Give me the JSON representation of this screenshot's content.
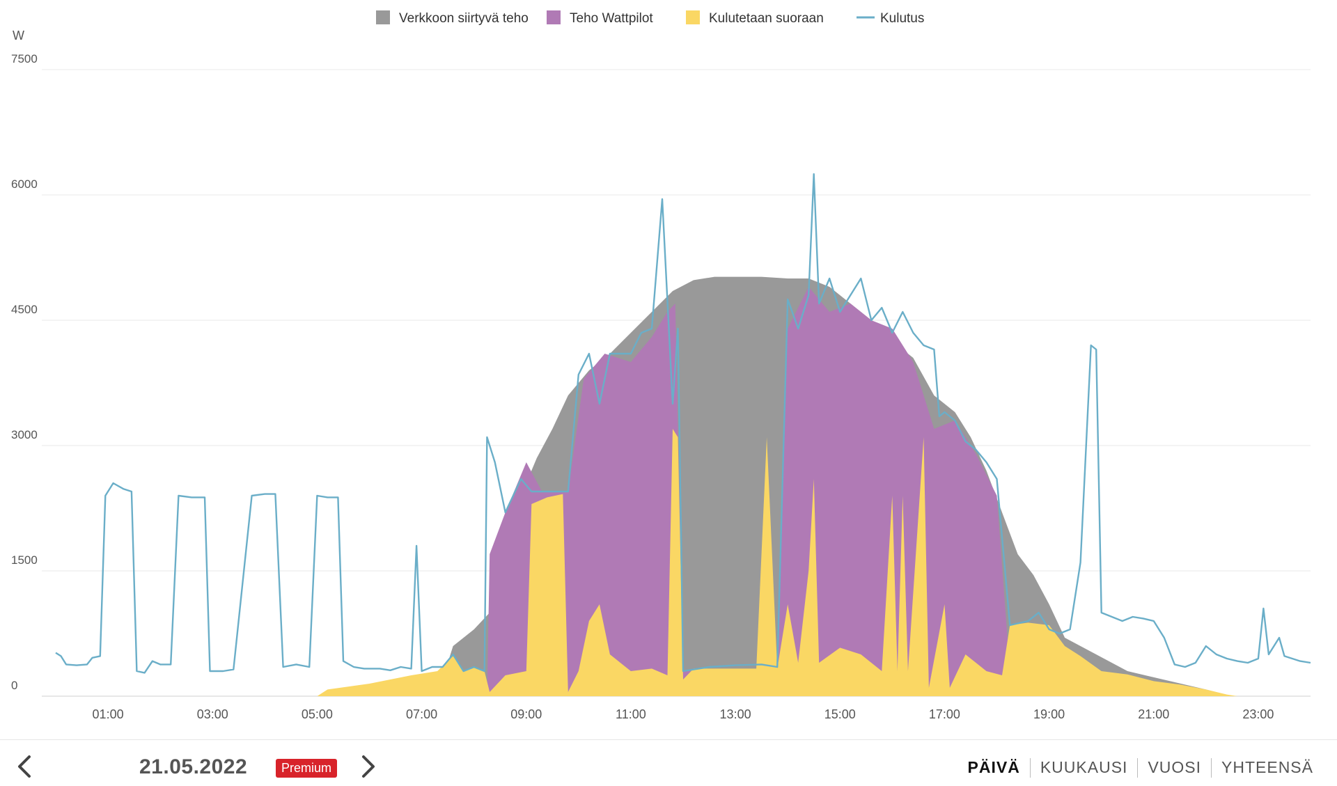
{
  "chart_data": {
    "type": "area",
    "ylabel": "W",
    "ylim": [
      0,
      7500
    ],
    "yticks": [
      "0",
      "1500",
      "3000",
      "4500",
      "6000",
      "7500"
    ],
    "xlim": [
      0,
      24
    ],
    "xticks": [
      "01:00",
      "03:00",
      "05:00",
      "07:00",
      "09:00",
      "11:00",
      "13:00",
      "15:00",
      "17:00",
      "19:00",
      "21:00",
      "23:00"
    ],
    "grid": true,
    "legend_position": "top",
    "series": [
      {
        "name": "Verkkoon siirtyvä teho",
        "kind": "area",
        "color": "#999999",
        "points": [
          [
            5,
            0
          ],
          [
            7.4,
            200
          ],
          [
            7.6,
            600
          ],
          [
            8.0,
            800
          ],
          [
            8.3,
            1000
          ],
          [
            8.6,
            1700
          ],
          [
            8.9,
            2400
          ],
          [
            9.2,
            2850
          ],
          [
            9.5,
            3200
          ],
          [
            9.8,
            3600
          ],
          [
            10.2,
            3900
          ],
          [
            10.6,
            4100
          ],
          [
            11.0,
            4350
          ],
          [
            11.4,
            4600
          ],
          [
            11.8,
            4850
          ],
          [
            12.2,
            4980
          ],
          [
            12.6,
            5020
          ],
          [
            13.0,
            5020
          ],
          [
            13.5,
            5020
          ],
          [
            14.0,
            5000
          ],
          [
            14.4,
            5000
          ],
          [
            14.8,
            4900
          ],
          [
            15.2,
            4700
          ],
          [
            15.6,
            4500
          ],
          [
            16.0,
            4250
          ],
          [
            16.4,
            4050
          ],
          [
            16.8,
            3600
          ],
          [
            17.2,
            3400
          ],
          [
            17.5,
            3100
          ],
          [
            17.8,
            2700
          ],
          [
            18.1,
            2200
          ],
          [
            18.4,
            1700
          ],
          [
            18.7,
            1450
          ],
          [
            19.0,
            1100
          ],
          [
            19.3,
            700
          ],
          [
            20.5,
            300
          ],
          [
            22.0,
            80
          ],
          [
            22.5,
            0
          ]
        ]
      },
      {
        "name": "Teho Wattpilot",
        "kind": "area",
        "color": "#b07ab5",
        "points": [
          [
            8.25,
            0
          ],
          [
            8.3,
            1700
          ],
          [
            8.6,
            2200
          ],
          [
            9.0,
            2800
          ],
          [
            9.3,
            2450
          ],
          [
            9.8,
            2450
          ],
          [
            10.1,
            3800
          ],
          [
            10.5,
            4100
          ],
          [
            11.0,
            4000
          ],
          [
            11.4,
            4300
          ],
          [
            11.7,
            4600
          ],
          [
            11.85,
            4700
          ],
          [
            12.0,
            300
          ],
          [
            13.8,
            300
          ],
          [
            14.0,
            4400
          ],
          [
            14.4,
            4900
          ],
          [
            14.8,
            4600
          ],
          [
            15.2,
            4700
          ],
          [
            15.6,
            4500
          ],
          [
            16.0,
            4400
          ],
          [
            16.4,
            4000
          ],
          [
            16.8,
            3200
          ],
          [
            17.2,
            3300
          ],
          [
            17.6,
            2900
          ],
          [
            18.0,
            2400
          ],
          [
            18.25,
            300
          ],
          [
            18.3,
            0
          ]
        ]
      },
      {
        "name": "Kulutetaan suoraan",
        "kind": "area",
        "color": "#fad764",
        "points": [
          [
            5.0,
            0
          ],
          [
            5.2,
            80
          ],
          [
            6.0,
            150
          ],
          [
            6.8,
            250
          ],
          [
            7.3,
            300
          ],
          [
            7.6,
            480
          ],
          [
            7.8,
            300
          ],
          [
            8.0,
            350
          ],
          [
            8.2,
            300
          ],
          [
            8.3,
            50
          ],
          [
            8.6,
            250
          ],
          [
            9.0,
            300
          ],
          [
            9.1,
            2300
          ],
          [
            9.4,
            2380
          ],
          [
            9.7,
            2420
          ],
          [
            9.8,
            50
          ],
          [
            10.0,
            300
          ],
          [
            10.2,
            900
          ],
          [
            10.4,
            1100
          ],
          [
            10.6,
            500
          ],
          [
            11.0,
            300
          ],
          [
            11.4,
            330
          ],
          [
            11.7,
            250
          ],
          [
            11.8,
            3200
          ],
          [
            11.9,
            3100
          ],
          [
            12.0,
            200
          ],
          [
            12.2,
            330
          ],
          [
            12.6,
            330
          ],
          [
            13.0,
            330
          ],
          [
            13.4,
            330
          ],
          [
            13.6,
            3100
          ],
          [
            13.8,
            330
          ],
          [
            14.0,
            1100
          ],
          [
            14.2,
            400
          ],
          [
            14.4,
            1500
          ],
          [
            14.5,
            2600
          ],
          [
            14.6,
            400
          ],
          [
            15.0,
            580
          ],
          [
            15.4,
            500
          ],
          [
            15.8,
            300
          ],
          [
            16.0,
            2400
          ],
          [
            16.1,
            300
          ],
          [
            16.2,
            2400
          ],
          [
            16.3,
            300
          ],
          [
            16.6,
            3100
          ],
          [
            16.7,
            100
          ],
          [
            17.0,
            1100
          ],
          [
            17.1,
            100
          ],
          [
            17.4,
            500
          ],
          [
            17.8,
            300
          ],
          [
            18.1,
            250
          ],
          [
            18.25,
            850
          ],
          [
            18.6,
            880
          ],
          [
            19.0,
            850
          ],
          [
            19.3,
            600
          ],
          [
            19.6,
            480
          ],
          [
            20.0,
            300
          ],
          [
            20.5,
            260
          ],
          [
            21.0,
            180
          ],
          [
            21.5,
            140
          ],
          [
            22.0,
            80
          ],
          [
            22.4,
            20
          ],
          [
            22.6,
            0
          ]
        ]
      },
      {
        "name": "Kulutus",
        "kind": "line",
        "color": "#6aaec8",
        "points": [
          [
            0,
            520
          ],
          [
            0.1,
            480
          ],
          [
            0.2,
            380
          ],
          [
            0.4,
            370
          ],
          [
            0.6,
            380
          ],
          [
            0.7,
            460
          ],
          [
            0.85,
            480
          ],
          [
            0.95,
            2400
          ],
          [
            1.1,
            2550
          ],
          [
            1.3,
            2480
          ],
          [
            1.45,
            2450
          ],
          [
            1.55,
            300
          ],
          [
            1.7,
            280
          ],
          [
            1.85,
            420
          ],
          [
            2.0,
            380
          ],
          [
            2.2,
            380
          ],
          [
            2.35,
            2400
          ],
          [
            2.6,
            2380
          ],
          [
            2.85,
            2380
          ],
          [
            2.95,
            300
          ],
          [
            3.2,
            300
          ],
          [
            3.4,
            320
          ],
          [
            3.75,
            2400
          ],
          [
            4.0,
            2420
          ],
          [
            4.2,
            2420
          ],
          [
            4.35,
            350
          ],
          [
            4.6,
            380
          ],
          [
            4.85,
            350
          ],
          [
            5.0,
            2400
          ],
          [
            5.2,
            2380
          ],
          [
            5.4,
            2380
          ],
          [
            5.5,
            420
          ],
          [
            5.7,
            350
          ],
          [
            5.9,
            330
          ],
          [
            6.2,
            330
          ],
          [
            6.4,
            310
          ],
          [
            6.6,
            350
          ],
          [
            6.8,
            330
          ],
          [
            6.9,
            1800
          ],
          [
            7.0,
            300
          ],
          [
            7.2,
            350
          ],
          [
            7.4,
            350
          ],
          [
            7.6,
            500
          ],
          [
            7.8,
            300
          ],
          [
            8.0,
            350
          ],
          [
            8.2,
            300
          ],
          [
            8.25,
            3100
          ],
          [
            8.4,
            2800
          ],
          [
            8.6,
            2200
          ],
          [
            8.9,
            2600
          ],
          [
            9.1,
            2450
          ],
          [
            9.5,
            2450
          ],
          [
            9.8,
            2450
          ],
          [
            10.0,
            3850
          ],
          [
            10.2,
            4100
          ],
          [
            10.4,
            3500
          ],
          [
            10.6,
            4100
          ],
          [
            11.0,
            4100
          ],
          [
            11.2,
            4350
          ],
          [
            11.4,
            4400
          ],
          [
            11.6,
            5950
          ],
          [
            11.8,
            3500
          ],
          [
            11.9,
            4400
          ],
          [
            12.0,
            300
          ],
          [
            12.5,
            350
          ],
          [
            13.0,
            370
          ],
          [
            13.5,
            380
          ],
          [
            13.8,
            350
          ],
          [
            14.0,
            4750
          ],
          [
            14.2,
            4400
          ],
          [
            14.4,
            4800
          ],
          [
            14.5,
            6250
          ],
          [
            14.6,
            4700
          ],
          [
            14.8,
            5000
          ],
          [
            15.0,
            4600
          ],
          [
            15.2,
            4800
          ],
          [
            15.4,
            5000
          ],
          [
            15.6,
            4500
          ],
          [
            15.8,
            4650
          ],
          [
            16.0,
            4350
          ],
          [
            16.2,
            4600
          ],
          [
            16.4,
            4350
          ],
          [
            16.6,
            4200
          ],
          [
            16.8,
            4150
          ],
          [
            16.9,
            3350
          ],
          [
            17.0,
            3400
          ],
          [
            17.2,
            3300
          ],
          [
            17.4,
            3050
          ],
          [
            17.6,
            2950
          ],
          [
            17.8,
            2800
          ],
          [
            18.0,
            2600
          ],
          [
            18.25,
            850
          ],
          [
            18.6,
            900
          ],
          [
            18.8,
            1000
          ],
          [
            19.0,
            800
          ],
          [
            19.2,
            750
          ],
          [
            19.4,
            800
          ],
          [
            19.6,
            1600
          ],
          [
            19.8,
            4200
          ],
          [
            19.9,
            4150
          ],
          [
            20.0,
            1000
          ],
          [
            20.2,
            950
          ],
          [
            20.4,
            900
          ],
          [
            20.6,
            950
          ],
          [
            20.8,
            930
          ],
          [
            21.0,
            900
          ],
          [
            21.2,
            700
          ],
          [
            21.4,
            380
          ],
          [
            21.6,
            350
          ],
          [
            21.8,
            400
          ],
          [
            22.0,
            600
          ],
          [
            22.2,
            500
          ],
          [
            22.4,
            450
          ],
          [
            22.6,
            420
          ],
          [
            22.8,
            400
          ],
          [
            23.0,
            450
          ],
          [
            23.1,
            1050
          ],
          [
            23.2,
            500
          ],
          [
            23.4,
            700
          ],
          [
            23.5,
            480
          ],
          [
            23.8,
            420
          ],
          [
            24,
            400
          ]
        ]
      }
    ]
  },
  "footer": {
    "date": "21.05.2022",
    "premium": "Premium",
    "tabs": [
      {
        "label": "PÄIVÄ",
        "active": true
      },
      {
        "label": "KUUKAUSI",
        "active": false
      },
      {
        "label": "VUOSI",
        "active": false
      },
      {
        "label": "YHTEENSÄ",
        "active": false
      }
    ]
  },
  "icons": {
    "prev": "chevron-left-icon",
    "next": "chevron-right-icon"
  }
}
